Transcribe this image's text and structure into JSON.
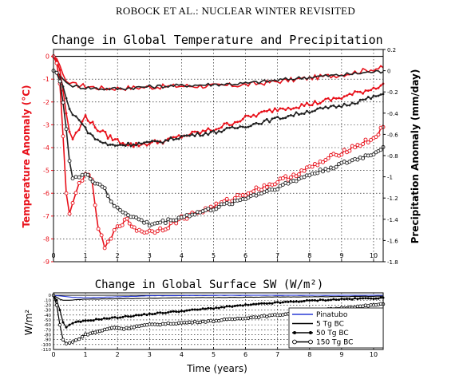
{
  "header": {
    "running_title": "ROBOCK ET AL.: NUCLEAR WINTER REVISITED"
  },
  "colors": {
    "temperature": "#e8101a",
    "precipitation": "#222222",
    "pinatubo": "#2a3bd6",
    "sw_series": "#000000"
  },
  "chart_data": [
    {
      "type": "line",
      "title": "Change in Global Temperature and Precipitation",
      "xlabel": "",
      "ylabel": "Temperature Anomaly (°C)",
      "y2label": "Precipitation Anomaly (mm/day)",
      "xlim": [
        0,
        10.3
      ],
      "ylim": [
        -9,
        0.3
      ],
      "y2lim": [
        -1.8,
        0.2
      ],
      "xticks": [
        "0",
        "1",
        "2",
        "3",
        "4",
        "5",
        "6",
        "7",
        "8",
        "9",
        "10"
      ],
      "yticks": [
        "0",
        "-1",
        "-2",
        "-3",
        "-4",
        "-5",
        "-6",
        "-7",
        "-8",
        "-9"
      ],
      "y2ticks": [
        "0.2",
        "0",
        "-0.2",
        "-0.4",
        "-0.6",
        "-0.8",
        "-1",
        "-1.2",
        "-1.4",
        "-1.6",
        "-1.8"
      ],
      "grid": true,
      "series": [
        {
          "name": "",
          "quantity": "temperature",
          "case": "5 Tg BC",
          "color": "#e8101a",
          "marker": "none",
          "x": [
            0,
            0.1,
            0.2,
            0.3,
            0.4,
            0.5,
            0.7,
            1,
            1.5,
            2,
            3,
            4,
            5,
            6,
            7,
            8,
            9,
            10,
            10.3
          ],
          "y": [
            0,
            -0.1,
            -0.4,
            -0.8,
            -1.1,
            -1.2,
            -1.25,
            -1.3,
            -1.4,
            -1.4,
            -1.35,
            -1.3,
            -1.3,
            -1.25,
            -1.1,
            -0.95,
            -0.8,
            -0.55,
            -0.5
          ]
        },
        {
          "name": "",
          "quantity": "precipitation",
          "case": "5 Tg BC",
          "color": "#222222",
          "marker": "none",
          "x": [
            0,
            0.1,
            0.2,
            0.3,
            0.4,
            0.5,
            0.7,
            1,
            1.5,
            2,
            3,
            4,
            5,
            6,
            7,
            8,
            9,
            10,
            10.3
          ],
          "y": [
            0,
            -0.01,
            -0.04,
            -0.08,
            -0.11,
            -0.13,
            -0.15,
            -0.16,
            -0.17,
            -0.17,
            -0.15,
            -0.14,
            -0.13,
            -0.12,
            -0.09,
            -0.06,
            -0.04,
            -0.01,
            -0.01
          ]
        },
        {
          "name": "",
          "quantity": "temperature",
          "case": "50 Tg BC",
          "color": "#e8101a",
          "marker": "dot",
          "x": [
            0,
            0.1,
            0.2,
            0.3,
            0.4,
            0.5,
            0.6,
            0.8,
            1,
            1.3,
            1.7,
            2,
            2.5,
            3,
            3.5,
            4,
            5,
            6,
            7,
            8,
            9,
            10,
            10.3
          ],
          "y": [
            0,
            -0.2,
            -0.6,
            -1.5,
            -2.5,
            -3.3,
            -3.6,
            -3.2,
            -2.6,
            -3.1,
            -3.5,
            -3.7,
            -3.9,
            -3.8,
            -3.7,
            -3.5,
            -3.2,
            -2.7,
            -2.3,
            -2.1,
            -1.8,
            -1.4,
            -1.2
          ]
        },
        {
          "name": "",
          "quantity": "precipitation",
          "case": "50 Tg BC",
          "color": "#222222",
          "marker": "dot",
          "x": [
            0,
            0.1,
            0.2,
            0.3,
            0.4,
            0.5,
            0.6,
            0.8,
            1,
            1.3,
            1.7,
            2,
            2.5,
            3,
            3.5,
            4,
            5,
            6,
            7,
            8,
            9,
            10,
            10.3
          ],
          "y": [
            0,
            -0.02,
            -0.06,
            -0.15,
            -0.26,
            -0.36,
            -0.42,
            -0.45,
            -0.55,
            -0.64,
            -0.7,
            -0.7,
            -0.69,
            -0.68,
            -0.66,
            -0.62,
            -0.58,
            -0.52,
            -0.45,
            -0.38,
            -0.33,
            -0.25,
            -0.22
          ]
        },
        {
          "name": "",
          "quantity": "temperature",
          "case": "150 Tg BC",
          "color": "#e8101a",
          "marker": "circle",
          "x": [
            0,
            0.1,
            0.2,
            0.3,
            0.4,
            0.5,
            0.6,
            0.7,
            0.8,
            1,
            1.2,
            1.4,
            1.6,
            1.8,
            2,
            2.3,
            2.6,
            3,
            3.5,
            4,
            5,
            6,
            7,
            8,
            9,
            10,
            10.3
          ],
          "y": [
            0,
            -0.3,
            -1.2,
            -3.5,
            -6,
            -6.9,
            -6.5,
            -6,
            -5.6,
            -5.1,
            -5.5,
            -7.5,
            -8.4,
            -8,
            -7.4,
            -7.2,
            -7.6,
            -7.7,
            -7.5,
            -7.1,
            -6.6,
            -6,
            -5.5,
            -4.9,
            -4.2,
            -3.6,
            -3.1
          ]
        },
        {
          "name": "",
          "quantity": "precipitation",
          "case": "150 Tg BC",
          "color": "#222222",
          "marker": "circle",
          "x": [
            0,
            0.1,
            0.2,
            0.3,
            0.4,
            0.5,
            0.6,
            0.8,
            1,
            1.3,
            1.6,
            1.8,
            2,
            2.5,
            3,
            3.5,
            4,
            5,
            6,
            7,
            8,
            9,
            10,
            10.3
          ],
          "y": [
            0,
            -0.02,
            -0.1,
            -0.3,
            -0.55,
            -0.85,
            -1.0,
            -1.0,
            -0.98,
            -1.05,
            -1.1,
            -1.25,
            -1.3,
            -1.38,
            -1.45,
            -1.42,
            -1.38,
            -1.3,
            -1.2,
            -1.1,
            -0.98,
            -0.88,
            -0.78,
            -0.72
          ]
        }
      ]
    },
    {
      "type": "line",
      "title": "Change in Global Surface SW (W/m²)",
      "xlabel": "Time (years)",
      "ylabel": "W/m²",
      "xlim": [
        0,
        10.3
      ],
      "ylim": [
        -110,
        5
      ],
      "xticks": [
        "0",
        "1",
        "2",
        "3",
        "4",
        "5",
        "6",
        "7",
        "8",
        "9",
        "10"
      ],
      "yticks": [
        "0",
        "-10",
        "-20",
        "-30",
        "-40",
        "-50",
        "-60",
        "-70",
        "-80",
        "-90",
        "-100",
        "-110"
      ],
      "grid": true,
      "legend_position": "bottom-right",
      "series": [
        {
          "name": "Pinatubo",
          "color": "#2a3bd6",
          "marker": "none",
          "x": [
            0,
            0.3,
            0.6,
            1,
            1.5,
            2,
            2.5,
            3,
            4,
            5,
            6,
            7,
            8,
            9,
            10,
            10.3
          ],
          "y": [
            0,
            -2,
            -4,
            -5,
            -4,
            -3,
            -2,
            -1,
            -0.5,
            -0.3,
            -0.2,
            -0.1,
            -0.1,
            0,
            0,
            0
          ]
        },
        {
          "name": "5 Tg BC",
          "color": "#000000",
          "marker": "none",
          "x": [
            0,
            0.1,
            0.2,
            0.3,
            0.5,
            0.7,
            1,
            2,
            3,
            4,
            5,
            6,
            7,
            8,
            9,
            10,
            10.3
          ],
          "y": [
            0,
            -4,
            -8,
            -10,
            -10,
            -9,
            -8,
            -7,
            -6,
            -5,
            -4.5,
            -4,
            -3.5,
            -3,
            -2.5,
            -2,
            -2
          ]
        },
        {
          "name": "50 Tg BC",
          "color": "#000000",
          "marker": "dot",
          "x": [
            0,
            0.1,
            0.2,
            0.3,
            0.4,
            0.5,
            0.7,
            1,
            1.5,
            2,
            3,
            4,
            5,
            6,
            7,
            8,
            9,
            10,
            10.3
          ],
          "y": [
            0,
            -10,
            -30,
            -55,
            -65,
            -60,
            -55,
            -52,
            -48,
            -45,
            -38,
            -32,
            -26,
            -20,
            -15,
            -11,
            -8,
            -6,
            -5
          ]
        },
        {
          "name": "150 Tg BC",
          "color": "#000000",
          "marker": "circle",
          "x": [
            0,
            0.1,
            0.2,
            0.3,
            0.4,
            0.6,
            0.8,
            1,
            1.3,
            1.6,
            1.9,
            2.2,
            2.6,
            3,
            4,
            5,
            6,
            7,
            8,
            9,
            10,
            10.3
          ],
          "y": [
            0,
            -20,
            -60,
            -90,
            -98,
            -95,
            -88,
            -80,
            -75,
            -70,
            -65,
            -68,
            -63,
            -60,
            -56,
            -52,
            -46,
            -40,
            -33,
            -26,
            -20,
            -18
          ]
        }
      ]
    }
  ]
}
